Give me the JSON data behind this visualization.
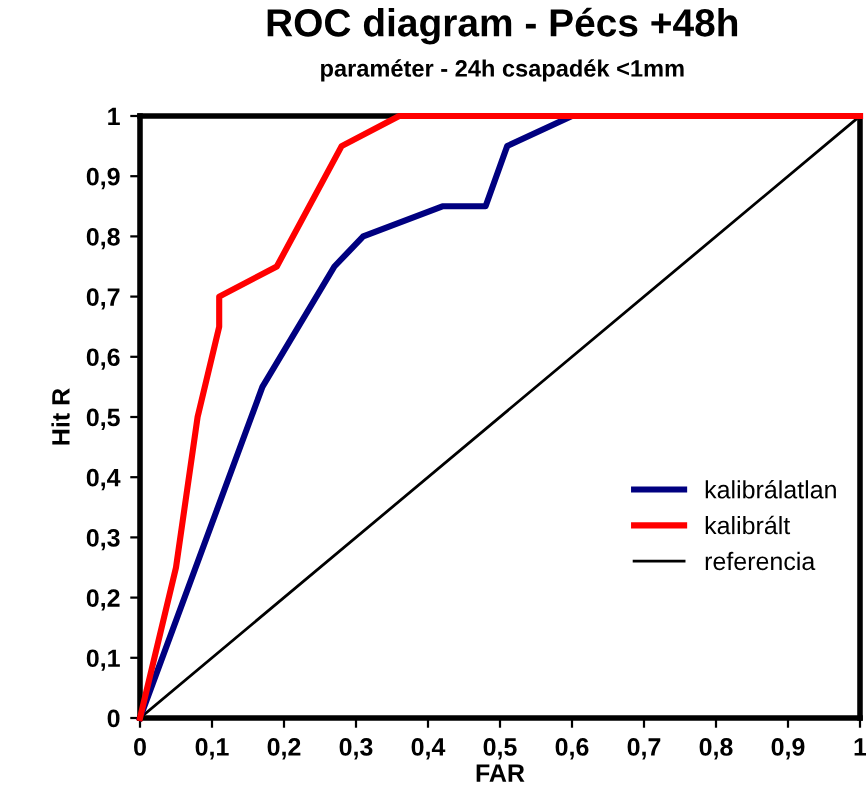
{
  "chart_data": {
    "type": "line",
    "title": "ROC diagram - Pécs +48h",
    "subtitle": "paraméter - 24h csapadék <1mm",
    "xlabel": "FAR",
    "ylabel": "Hit R",
    "series": [
      {
        "name": "kalibrálatlan",
        "color": "#000080",
        "x": [
          0,
          0.17,
          0.27,
          0.31,
          0.42,
          0.48,
          0.51,
          0.6,
          1
        ],
        "values": [
          0,
          0.55,
          0.75,
          0.8,
          0.85,
          0.85,
          0.95,
          1,
          1
        ]
      },
      {
        "name": "kalibrált",
        "color": "#ff0000",
        "x": [
          0,
          0.05,
          0.08,
          0.11,
          0.11,
          0.19,
          0.28,
          0.36,
          1
        ],
        "values": [
          0,
          0.25,
          0.5,
          0.65,
          0.7,
          0.75,
          0.95,
          1,
          1
        ]
      },
      {
        "name": "referencia",
        "color": "#000000",
        "x": [
          0,
          1
        ],
        "values": [
          0,
          1
        ]
      }
    ],
    "xlim": [
      0,
      1
    ],
    "ylim": [
      0,
      1
    ],
    "xticks": [
      0,
      {
        "value": 0.1,
        "label": "0,1"
      },
      {
        "value": 0.2,
        "label": "0,2"
      },
      {
        "value": 0.3,
        "label": "0,3"
      },
      {
        "value": 0.4,
        "label": "0,4"
      },
      {
        "value": 0.5,
        "label": "0,5"
      },
      {
        "value": 0.6,
        "label": "0,6"
      },
      {
        "value": 0.7,
        "label": "0,7"
      },
      {
        "value": 0.8,
        "label": "0,8"
      },
      {
        "value": 0.9,
        "label": "0,9"
      },
      1
    ],
    "yticks": [
      0,
      {
        "value": 0.1,
        "label": "0,1"
      },
      {
        "value": 0.2,
        "label": "0,2"
      },
      {
        "value": 0.3,
        "label": "0,3"
      },
      {
        "value": 0.4,
        "label": "0,4"
      },
      {
        "value": 0.5,
        "label": "0,5"
      },
      {
        "value": 0.6,
        "label": "0,6"
      },
      {
        "value": 0.7,
        "label": "0,7"
      },
      {
        "value": 0.8,
        "label": "0,8"
      },
      {
        "value": 0.9,
        "label": "0,9"
      },
      1
    ],
    "legend": "bottom right",
    "grid": false
  }
}
